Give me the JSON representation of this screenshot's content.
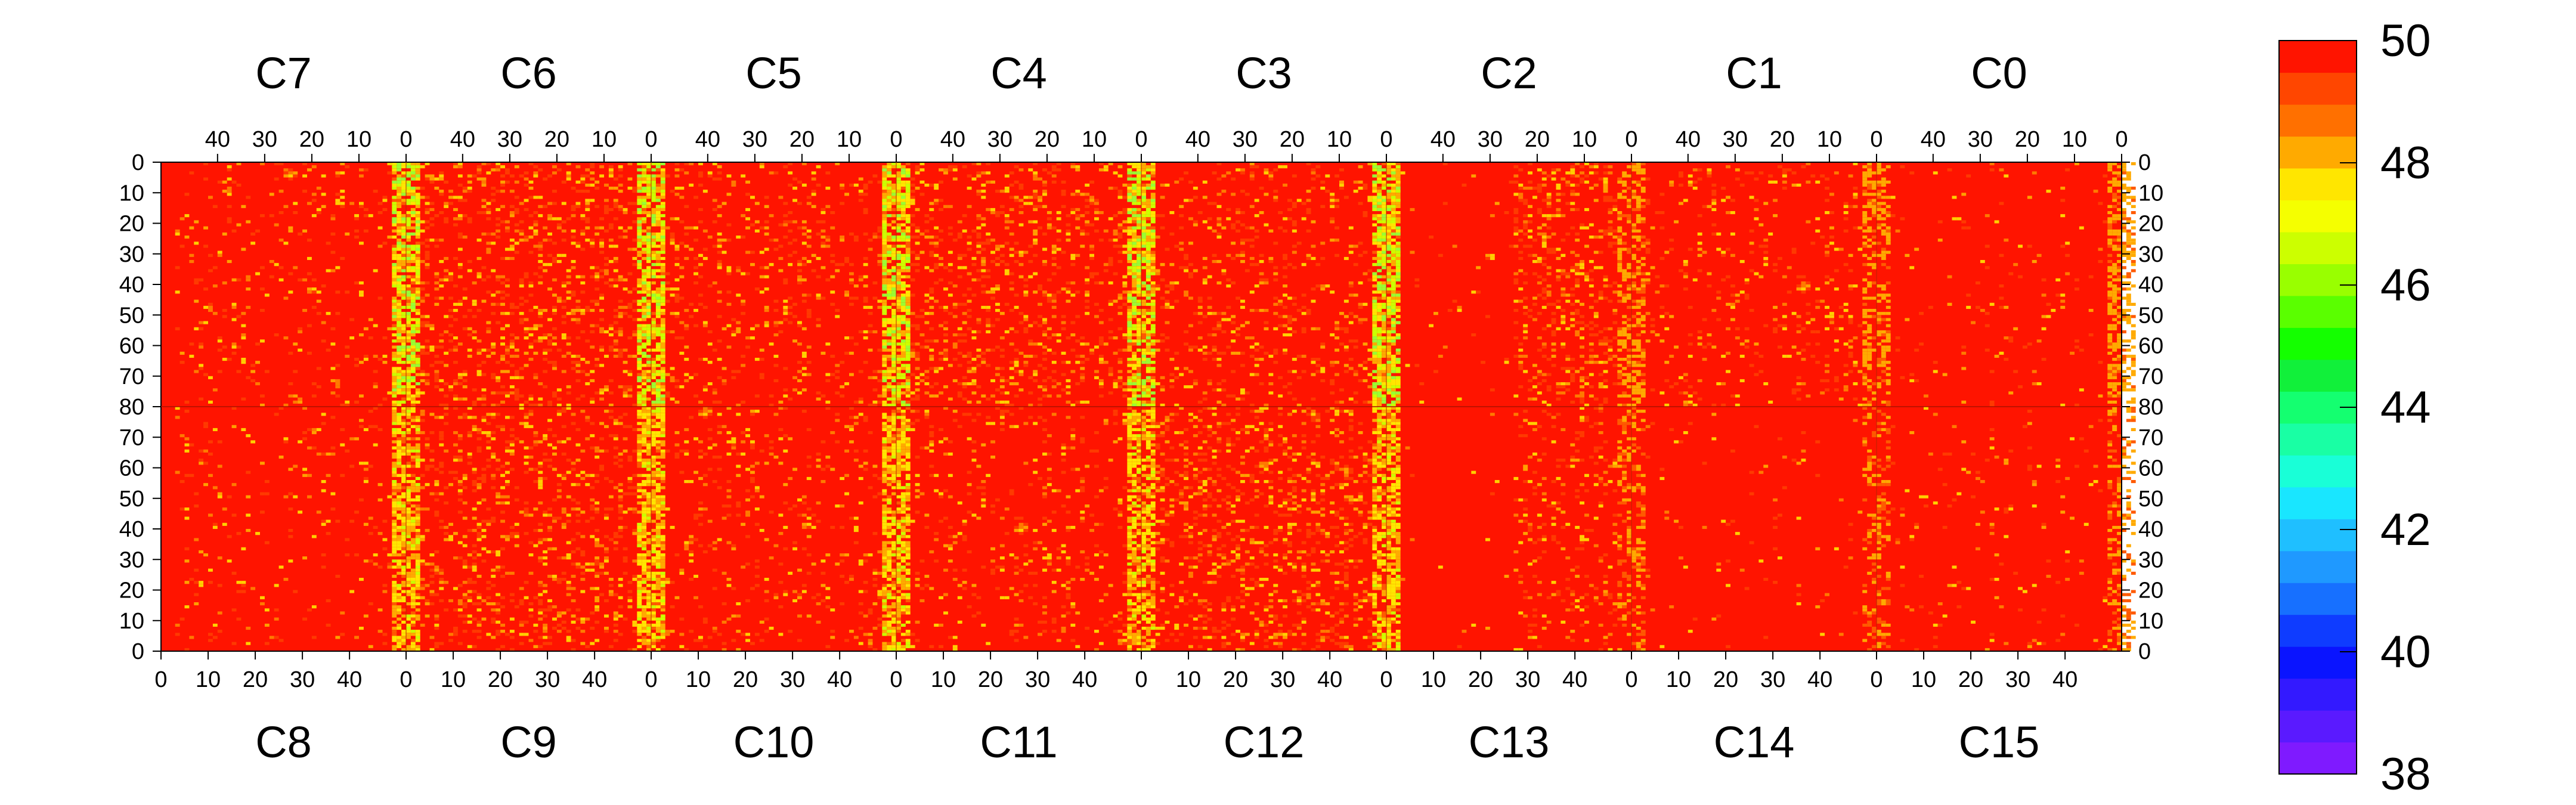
{
  "chart_data": {
    "type": "heatmap",
    "title": "",
    "top_chip_labels": [
      "C7",
      "C6",
      "C5",
      "C4",
      "C3",
      "C2",
      "C1",
      "C0"
    ],
    "bottom_chip_labels": [
      "C8",
      "C9",
      "C10",
      "C11",
      "C12",
      "C13",
      "C14",
      "C15"
    ],
    "columns_per_chip": 52,
    "rows_per_half": 80,
    "x_tick_values": [
      0,
      10,
      20,
      30,
      40
    ],
    "y_tick_values_top": [
      0,
      10,
      20,
      30,
      40,
      50,
      60,
      70,
      80
    ],
    "y_tick_values_bottom": [
      70,
      60,
      50,
      40,
      30,
      20,
      10,
      0
    ],
    "colorbar": {
      "min": 38,
      "max": 50,
      "tick_values": [
        38,
        40,
        42,
        44,
        46,
        48,
        50
      ],
      "colors": [
        "#7f1aff",
        "#5a1aff",
        "#3319ff",
        "#0a14ff",
        "#0f3cff",
        "#1770ff",
        "#1f99ff",
        "#1fbfff",
        "#19e6ff",
        "#19ffd7",
        "#19ffa4",
        "#14ff70",
        "#11f03a",
        "#14ff00",
        "#5aff00",
        "#99ff00",
        "#ccff00",
        "#f5ff00",
        "#ffe600",
        "#ffaa00",
        "#ff7000",
        "#ff4600",
        "#ff1400"
      ]
    },
    "grid": false,
    "legend": "colorbar right"
  }
}
